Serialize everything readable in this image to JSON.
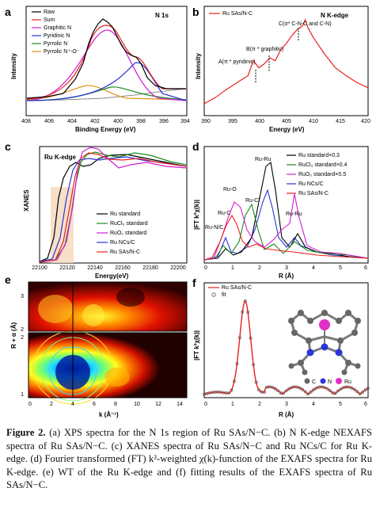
{
  "panels": {
    "a": {
      "label": "a",
      "title": "N 1s",
      "xlabel": "Binding Energy (eV)",
      "ylabel": "Intensity",
      "xticks": [
        "408",
        "406",
        "404",
        "402",
        "400",
        "398",
        "396",
        "394"
      ],
      "legend": [
        "Raw",
        "Sum",
        "Graphitic N",
        "Pyridinic N",
        "Pyrrolic N",
        "Pyrrolic N⁺-O⁻"
      ]
    },
    "b": {
      "label": "b",
      "title": "N  K-edge",
      "legend": "Ru SAs/N-C",
      "xlabel": "Energy (eV)",
      "ylabel": "Intensity",
      "xticks": [
        "390",
        "395",
        "400",
        "405",
        "410",
        "415",
        "420"
      ],
      "ann1": "A(π * pyridinic)",
      "ann2": "B(π * graphitic)",
      "ann3": "C(σ* C-N-C and C-N)"
    },
    "c": {
      "label": "c",
      "title": "Ru  K-edge",
      "xlabel": "Energy(eV)",
      "ylabel": "XANES",
      "xticks": [
        "22100",
        "22120",
        "22140",
        "22160",
        "22180",
        "22200"
      ],
      "legend": [
        "Ru standard",
        "RuCl₃ standard",
        "RuO₂ standard",
        "Ru NCs/C",
        "Ru SAs/N-C"
      ]
    },
    "d": {
      "label": "d",
      "xlabel": "R (Å)",
      "ylabel": "|FT k²χ(k)|",
      "xticks": [
        "0",
        "1",
        "2",
        "3",
        "4",
        "5",
        "6"
      ],
      "legend": [
        "Ru standard×0.3",
        "RuCl₃ standard×0.4",
        "RuO₂ standard×0.5",
        "Ru NCs/C",
        "Ru SAs/N-C"
      ],
      "peaks": [
        "Ru-Ru",
        "Ru-O",
        "Ru-Cl",
        "Ru-C",
        "Ru-Ru",
        "Ru-N/C"
      ]
    },
    "e": {
      "label": "e",
      "xlabel": "k (Å⁻¹)",
      "ylabel": "R + α (Å)",
      "xticks": [
        "0",
        "2",
        "4",
        "6",
        "8",
        "10",
        "12",
        "14"
      ],
      "yticks_top": [
        "3",
        "2"
      ],
      "yticks_bottom": [
        "2",
        "1"
      ]
    },
    "f": {
      "label": "f",
      "legend": [
        "Ru SAs/N-C",
        "fit"
      ],
      "xlabel": "R (Å)",
      "ylabel": "|FT k²χ(k)|",
      "xticks": [
        "0",
        "1",
        "2",
        "3",
        "4",
        "5",
        "6"
      ],
      "atoms": [
        "C",
        "N",
        "Ru"
      ]
    }
  },
  "colors": {
    "black": "#000000",
    "red": "#e8201b",
    "green": "#1a8a1a",
    "blue": "#2a35d8",
    "magenta": "#d21ed2",
    "orange": "#e8901a",
    "gray": "#8a8a8a"
  },
  "chart_data": [
    {
      "panel": "a",
      "type": "line",
      "title": "N 1s",
      "xlabel": "Binding Energy (eV)",
      "ylabel": "Intensity",
      "xlim": [
        408,
        394
      ],
      "series": [
        {
          "name": "Graphitic N",
          "center": 400.9,
          "peak": 0.7
        },
        {
          "name": "Pyridinic N",
          "center": 398.4,
          "peak": 0.45
        },
        {
          "name": "Pyrrolic N",
          "center": 400.0,
          "peak": 0.22
        },
        {
          "name": "Pyrrolic N⁺-O⁻",
          "center": 402.6,
          "peak": 0.12
        }
      ]
    },
    {
      "panel": "b",
      "type": "line",
      "title": "N  K-edge",
      "xlabel": "Energy (eV)",
      "ylabel": "Intensity",
      "xlim": [
        390,
        420
      ],
      "x": [
        390,
        392,
        394,
        396,
        398,
        399,
        400,
        401,
        402,
        403,
        404,
        405,
        406,
        407,
        408,
        408.5,
        409,
        410,
        412,
        414,
        416,
        418,
        420
      ],
      "series": [
        {
          "name": "Ru SAs/N-C",
          "values": [
            0.12,
            0.18,
            0.26,
            0.33,
            0.4,
            0.55,
            0.48,
            0.52,
            0.58,
            0.55,
            0.66,
            0.72,
            0.8,
            0.86,
            0.9,
            0.96,
            0.88,
            0.78,
            0.62,
            0.48,
            0.4,
            0.33,
            0.28
          ]
        }
      ]
    },
    {
      "panel": "c",
      "type": "line",
      "title": "Ru  K-edge",
      "xlabel": "Energy(eV)",
      "ylabel": "XANES",
      "xlim": [
        22100,
        22210
      ],
      "series": [
        {
          "name": "Ru standard",
          "e0": 22117
        },
        {
          "name": "RuCl₃ standard",
          "e0": 22126
        },
        {
          "name": "RuO₂ standard",
          "e0": 22128
        },
        {
          "name": "Ru NCs/C",
          "e0": 22122
        },
        {
          "name": "Ru SAs/N-C",
          "e0": 22125
        }
      ]
    },
    {
      "panel": "d",
      "type": "line",
      "xlabel": "R (Å)",
      "ylabel": "|FT k²χ(k)|",
      "xlim": [
        0,
        6
      ],
      "series": [
        {
          "name": "Ru standard×0.3",
          "peak_R": 2.4
        },
        {
          "name": "RuCl₃ standard×0.4",
          "peak_R": 1.9
        },
        {
          "name": "RuO₂ standard×0.5",
          "peak_R": 1.5
        },
        {
          "name": "Ru NCs/C",
          "peak_R": 2.4
        },
        {
          "name": "Ru SAs/N-C",
          "peak_R": 1.4
        }
      ]
    },
    {
      "panel": "e",
      "type": "heatmap",
      "xlabel": "k (Å⁻¹)",
      "ylabel": "R + α (Å)",
      "xlim": [
        0,
        15
      ],
      "ylim": [
        1,
        3.5
      ]
    },
    {
      "panel": "f",
      "type": "line",
      "xlabel": "R (Å)",
      "ylabel": "|FT k²χ(k)|",
      "xlim": [
        0,
        6
      ],
      "series": [
        {
          "name": "Ru SAs/N-C",
          "peak_R": 1.5
        },
        {
          "name": "fit",
          "peak_R": 1.5
        }
      ]
    }
  ],
  "caption": {
    "lead": "Figure 2.",
    "text": " (a) XPS spectra for the N 1s region of Ru SAs/N−C. (b) N K-edge NEXAFS spectra of Ru SAs/N−C. (c) XANES spectra of Ru SAs/N−C and Ru NCs/C for Ru K-edge. (d) Fourier transformed (FT) k²-weighted χ(k)-function of the EXAFS spectra for Ru K-edge. (e) WT of the Ru K-edge and (f) fitting results of the EXAFS spectra of Ru SAs/N−C."
  }
}
